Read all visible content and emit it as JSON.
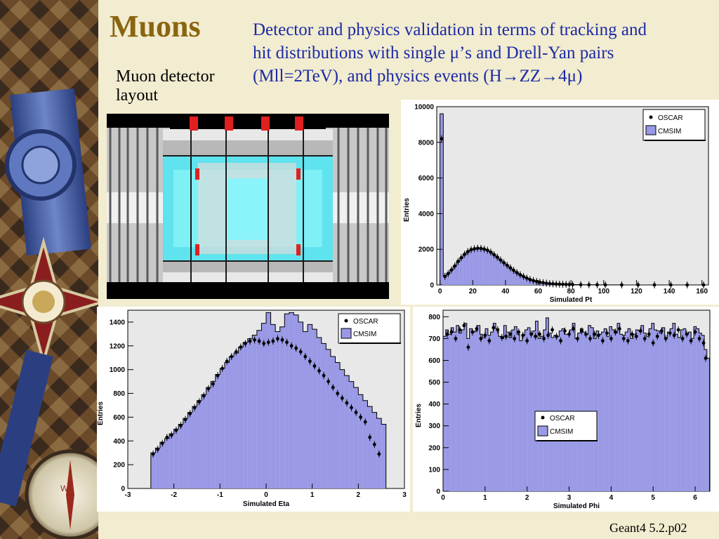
{
  "slide": {
    "title": "Muons",
    "description_lines": [
      "Detector and physics validation in terms of tracking and",
      "hit distributions with single μ’s and Drell-Yan pairs",
      "(Mll=2TeV), and physics events (H→ZZ→4μ)"
    ],
    "layout_label_lines": [
      "Muon detector",
      "layout"
    ],
    "footer": "Geant4 5.2.p02"
  },
  "colors": {
    "title": "#8a6510",
    "description": "#1b2aa5",
    "histogram_fill": "#9999e6",
    "histogram_edge": "#000000",
    "plot_background": "#e8e8e8",
    "slide_background": "#f2ecd0"
  },
  "chart_data": [
    {
      "id": "pt",
      "type": "bar",
      "xlabel": "Simulated Pt",
      "ylabel": "Entries",
      "xlim": [
        -2,
        164
      ],
      "ylim": [
        0,
        10000
      ],
      "xticks": [
        0,
        20,
        40,
        60,
        80,
        100,
        120,
        140,
        160
      ],
      "yticks": [
        0,
        2000,
        4000,
        6000,
        8000,
        10000
      ],
      "legend": {
        "position": "top-right",
        "entries": [
          "OSCAR",
          "CMSIM"
        ]
      },
      "grid": false,
      "series": [
        {
          "name": "CMSIM",
          "kind": "histogram",
          "x": [
            0,
            2,
            4,
            6,
            8,
            10,
            12,
            14,
            16,
            18,
            20,
            22,
            24,
            26,
            28,
            30,
            32,
            34,
            36,
            38,
            40,
            42,
            44,
            46,
            48,
            50,
            52,
            54,
            56,
            58,
            60,
            62,
            64,
            66,
            68,
            70,
            72,
            74,
            76,
            78,
            80,
            85,
            90,
            95,
            100,
            110,
            120,
            130,
            140,
            150,
            160
          ],
          "values": [
            9600,
            500,
            650,
            850,
            1050,
            1300,
            1500,
            1700,
            1850,
            1950,
            2000,
            2050,
            2050,
            2000,
            1950,
            1850,
            1700,
            1550,
            1400,
            1250,
            1100,
            950,
            800,
            680,
            570,
            470,
            380,
            300,
            240,
            190,
            150,
            120,
            95,
            75,
            60,
            48,
            40,
            33,
            27,
            22,
            18,
            12,
            8,
            5,
            3,
            2,
            1,
            1,
            1,
            0,
            0
          ]
        },
        {
          "name": "OSCAR",
          "kind": "points",
          "x": [
            1,
            3,
            5,
            7,
            9,
            11,
            13,
            15,
            17,
            19,
            21,
            23,
            25,
            27,
            29,
            31,
            33,
            35,
            37,
            39,
            41,
            43,
            45,
            47,
            49,
            51,
            53,
            55,
            57,
            59,
            61,
            63,
            65,
            67,
            69,
            71,
            73,
            75,
            77,
            79,
            81,
            86,
            91,
            96,
            101,
            111,
            121,
            131,
            141,
            151,
            161
          ],
          "values": [
            8200,
            480,
            640,
            840,
            1060,
            1320,
            1530,
            1720,
            1870,
            1980,
            2030,
            2060,
            2050,
            2010,
            1950,
            1840,
            1700,
            1560,
            1400,
            1250,
            1100,
            960,
            820,
            690,
            575,
            475,
            385,
            305,
            245,
            195,
            155,
            125,
            98,
            78,
            62,
            50,
            42,
            35,
            28,
            23,
            19,
            13,
            9,
            6,
            4,
            3,
            2,
            1,
            1,
            1,
            1
          ]
        }
      ]
    },
    {
      "id": "eta",
      "type": "bar",
      "xlabel": "Simulated Eta",
      "ylabel": "Entries",
      "xlim": [
        -3,
        3
      ],
      "ylim": [
        0,
        1500
      ],
      "xticks": [
        -3,
        -2,
        -1,
        0,
        1,
        2,
        3
      ],
      "yticks": [
        0,
        200,
        400,
        600,
        800,
        1000,
        1200,
        1400
      ],
      "legend": {
        "position": "top-right",
        "entries": [
          "OSCAR",
          "CMSIM"
        ]
      },
      "grid": false,
      "series": [
        {
          "name": "CMSIM",
          "kind": "histogram",
          "bin_start": -2.5,
          "bin_width": 0.1,
          "values": [
            300,
            340,
            390,
            420,
            460,
            500,
            540,
            590,
            640,
            690,
            740,
            790,
            850,
            900,
            960,
            1010,
            1060,
            1110,
            1140,
            1190,
            1230,
            1260,
            1290,
            1330,
            1390,
            1480,
            1380,
            1320,
            1360,
            1470,
            1480,
            1460,
            1400,
            1320,
            1380,
            1340,
            1270,
            1220,
            1170,
            1110,
            1060,
            1000,
            950,
            900,
            850,
            790,
            740,
            690,
            640,
            590,
            540
          ]
        },
        {
          "name": "OSCAR",
          "kind": "points",
          "x": [
            -2.45,
            -2.35,
            -2.25,
            -2.15,
            -2.05,
            -1.95,
            -1.85,
            -1.75,
            -1.65,
            -1.55,
            -1.45,
            -1.35,
            -1.25,
            -1.15,
            -1.05,
            -0.95,
            -0.85,
            -0.75,
            -0.65,
            -0.55,
            -0.45,
            -0.35,
            -0.25,
            -0.15,
            -0.05,
            0.05,
            0.15,
            0.25,
            0.35,
            0.45,
            0.55,
            0.65,
            0.75,
            0.85,
            0.95,
            1.05,
            1.15,
            1.25,
            1.35,
            1.45,
            1.55,
            1.65,
            1.75,
            1.85,
            1.95,
            2.05,
            2.15,
            2.25,
            2.35,
            2.45
          ],
          "values": [
            290,
            330,
            380,
            430,
            450,
            490,
            530,
            580,
            630,
            680,
            730,
            780,
            840,
            880,
            950,
            1010,
            1070,
            1110,
            1150,
            1190,
            1220,
            1240,
            1250,
            1240,
            1220,
            1230,
            1240,
            1260,
            1250,
            1230,
            1200,
            1180,
            1150,
            1110,
            1070,
            1030,
            990,
            950,
            900,
            850,
            800,
            760,
            720,
            680,
            640,
            600,
            560,
            430,
            370,
            290
          ]
        }
      ]
    },
    {
      "id": "phi",
      "type": "bar",
      "xlabel": "Simulated Phi",
      "ylabel": "Entries",
      "xlim": [
        0,
        6.35
      ],
      "ylim": [
        0,
        830
      ],
      "xticks": [
        0,
        1,
        2,
        3,
        4,
        5,
        6
      ],
      "yticks": [
        0,
        100,
        200,
        300,
        400,
        500,
        600,
        700,
        800
      ],
      "legend": {
        "position": "center-right",
        "entries": [
          "OSCAR",
          "CMSIM"
        ]
      },
      "grid": false,
      "series": [
        {
          "name": "CMSIM",
          "kind": "histogram",
          "bin_start": 0,
          "bin_width": 0.0628,
          "values": [
            710,
            740,
            720,
            750,
            730,
            760,
            725,
            740,
            770,
            700,
            745,
            730,
            735,
            760,
            720,
            705,
            745,
            715,
            730,
            770,
            745,
            710,
            700,
            760,
            730,
            705,
            740,
            755,
            720,
            690,
            715,
            740,
            750,
            725,
            735,
            780,
            700,
            710,
            740,
            795,
            725,
            705,
            715,
            710,
            735,
            745,
            720,
            720,
            740,
            770,
            700,
            725,
            745,
            730,
            720,
            760,
            750,
            700,
            735,
            720,
            730,
            745,
            710,
            755,
            740,
            725,
            770,
            720,
            715,
            730,
            745,
            700,
            720,
            740,
            735,
            760,
            725,
            710,
            745,
            770,
            740,
            735,
            725,
            750,
            700,
            730,
            745,
            770,
            720,
            705,
            740,
            745,
            720,
            730,
            700,
            755,
            745,
            725,
            715,
            650,
            610
          ]
        },
        {
          "name": "OSCAR",
          "kind": "points",
          "x": [
            0.1,
            0.2,
            0.3,
            0.4,
            0.5,
            0.6,
            0.7,
            0.8,
            0.9,
            1.0,
            1.1,
            1.2,
            1.3,
            1.4,
            1.5,
            1.6,
            1.7,
            1.8,
            1.9,
            2.0,
            2.1,
            2.2,
            2.3,
            2.4,
            2.5,
            2.6,
            2.7,
            2.8,
            2.9,
            3.0,
            3.1,
            3.2,
            3.3,
            3.4,
            3.5,
            3.6,
            3.7,
            3.8,
            3.9,
            4.0,
            4.1,
            4.2,
            4.3,
            4.4,
            4.5,
            4.6,
            4.7,
            4.8,
            4.9,
            5.0,
            5.1,
            5.2,
            5.3,
            5.4,
            5.5,
            5.6,
            5.7,
            5.8,
            5.9,
            6.0,
            6.1,
            6.2,
            6.25
          ],
          "values": [
            720,
            730,
            700,
            740,
            760,
            660,
            730,
            745,
            700,
            715,
            690,
            750,
            740,
            705,
            710,
            720,
            700,
            730,
            715,
            690,
            720,
            710,
            720,
            700,
            715,
            740,
            710,
            690,
            735,
            720,
            745,
            700,
            735,
            720,
            700,
            720,
            715,
            690,
            725,
            700,
            730,
            745,
            700,
            690,
            720,
            710,
            735,
            700,
            720,
            680,
            710,
            735,
            700,
            725,
            715,
            740,
            700,
            720,
            690,
            730,
            700,
            680,
            610
          ]
        }
      ]
    }
  ]
}
